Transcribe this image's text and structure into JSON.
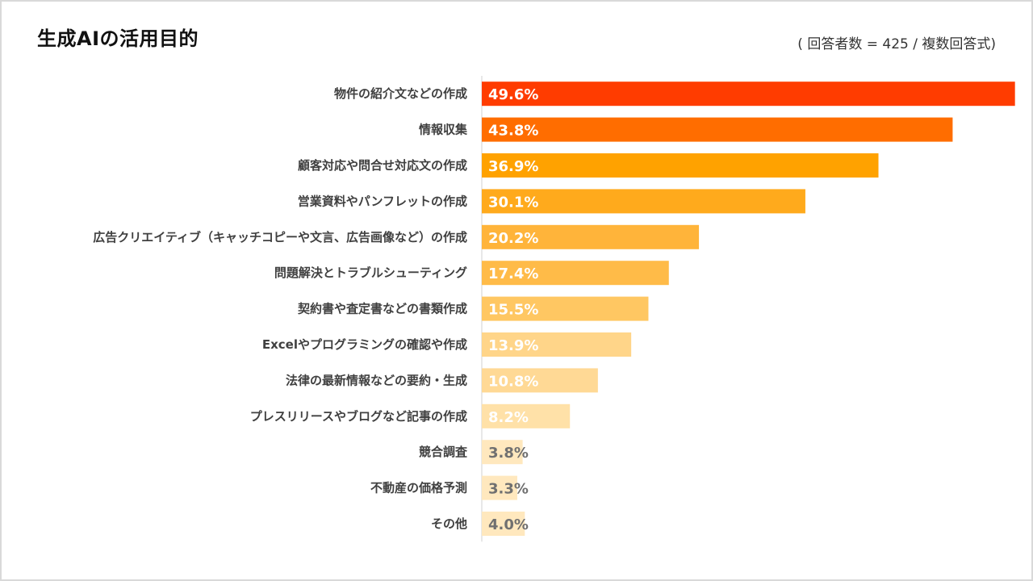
{
  "chart_data": {
    "type": "bar",
    "orientation": "horizontal",
    "title": "生成AIの活用目的",
    "note": "( 回答者数 = 425 / 複数回答式)",
    "categories": [
      "物件の紹介文などの作成",
      "情報収集",
      "顧客対応や問合せ対応文の作成",
      "営業資料やパンフレットの作成",
      "広告クリエイティブ（キャッチコピーや文言、広告画像など）の作成",
      "問題解決とトラブルシューティング",
      "契約書や査定書などの書類作成",
      "Excelやプログラミングの確認や作成",
      "法律の最新情報などの要約・生成",
      "プレスリリースやブログなど記事の作成",
      "競合調査",
      "不動産の価格予測",
      "その他"
    ],
    "values": [
      49.6,
      43.8,
      36.9,
      30.1,
      20.2,
      17.4,
      15.5,
      13.9,
      10.8,
      8.2,
      3.8,
      3.3,
      4.0
    ],
    "value_labels": [
      "49.6%",
      "43.8%",
      "36.9%",
      "30.1%",
      "20.2%",
      "17.4%",
      "15.5%",
      "13.9%",
      "10.8%",
      "8.2%",
      "3.8%",
      "3.3%",
      "4.0%"
    ],
    "colors": [
      "#ff3c00",
      "#ff6d00",
      "#ffa200",
      "#ffaa1c",
      "#ffb43a",
      "#ffbb48",
      "#ffc762",
      "#ffd589",
      "#ffd995",
      "#ffe1a8",
      "#ffe8be",
      "#ffe8be",
      "#ffe8be"
    ],
    "label_colors": [
      "#ffffff",
      "#ffffff",
      "#ffffff",
      "#ffffff",
      "#ffffff",
      "#ffffff",
      "#ffffff",
      "#ffffff",
      "#ffffff",
      "#ffffff",
      "#707070",
      "#707070",
      "#707070"
    ],
    "xlim": [
      0,
      50
    ],
    "xlabel": "",
    "ylabel": "",
    "grid": false,
    "legend": "none"
  }
}
